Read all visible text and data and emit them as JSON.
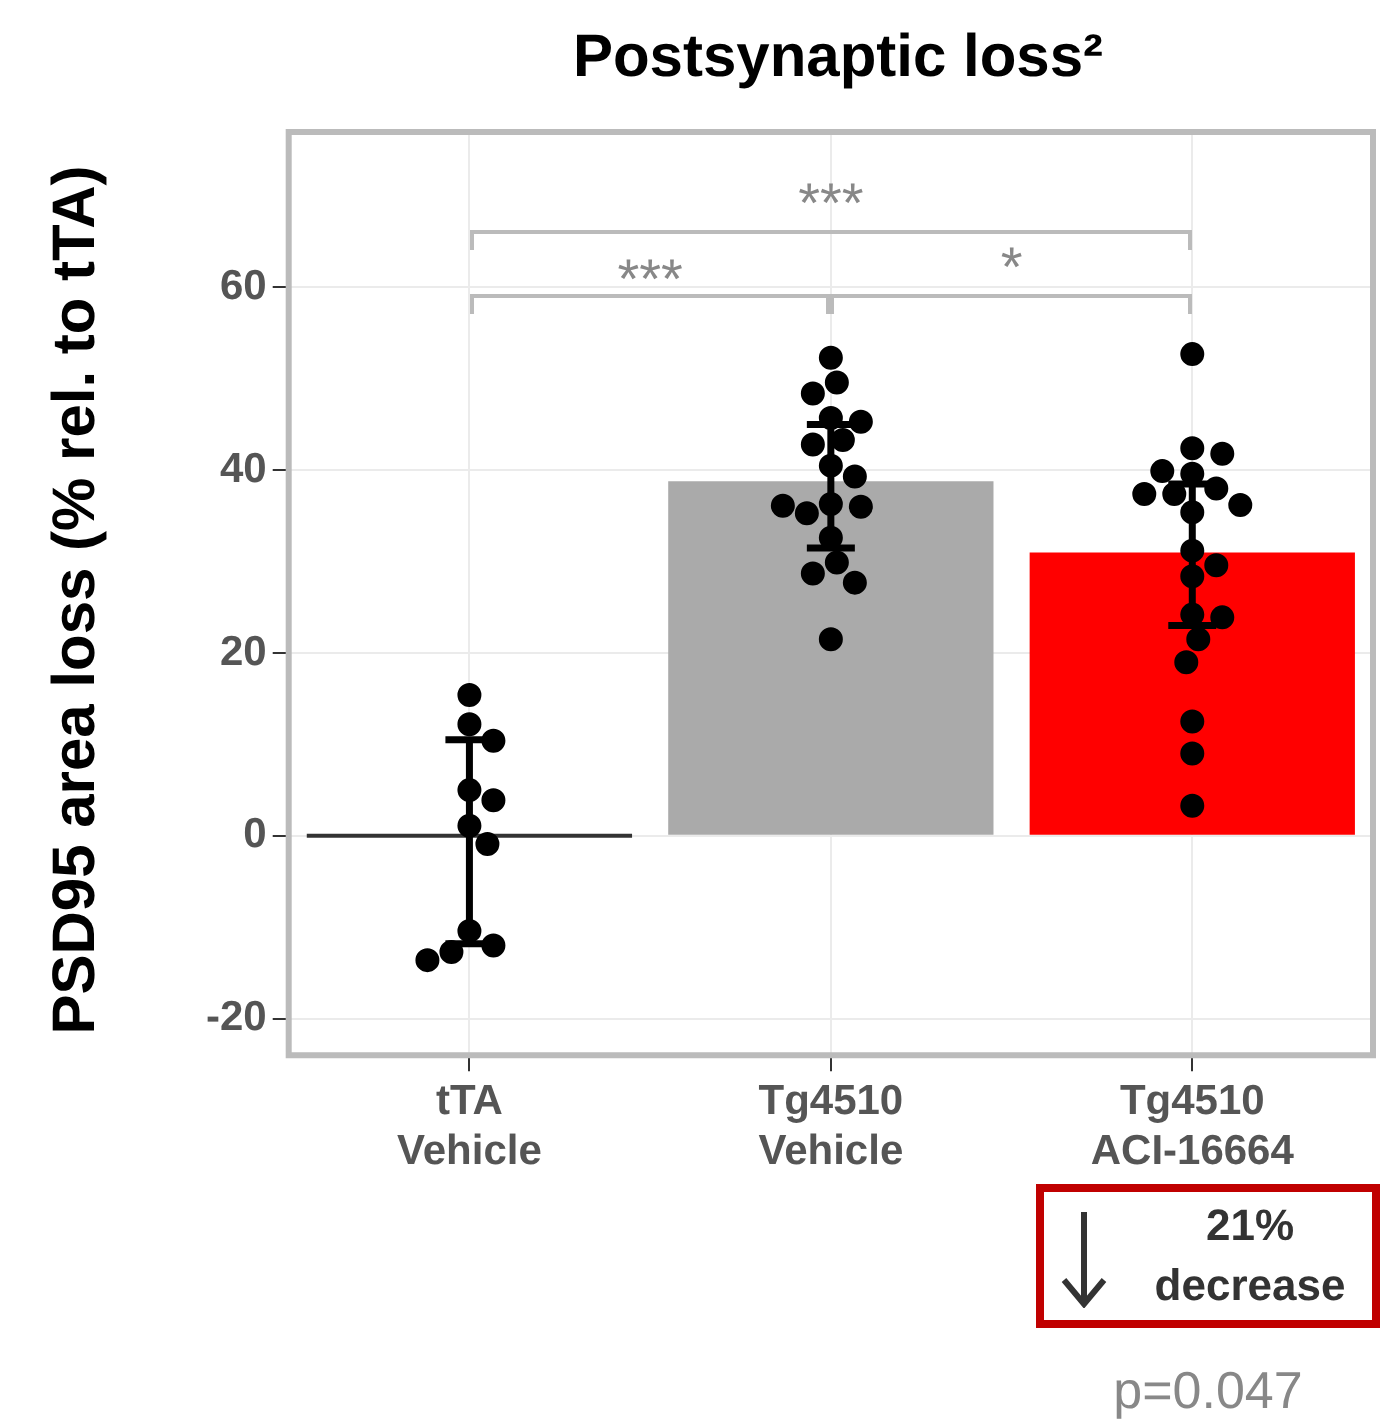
{
  "chart_data": {
    "type": "bar",
    "title": "Postsynaptic loss²",
    "ylabel": "PSD95 area loss (% rel. to tTA)",
    "categories": [
      "tTA\nVehicle",
      "Tg4510\nVehicle",
      "Tg4510\nACI-16664"
    ],
    "values": [
      0,
      38.8,
      31
    ],
    "colors": [
      "#333333",
      "#aaaaaa",
      "#ff0000"
    ],
    "errors": [
      [
        -11.8,
        10.5
      ],
      [
        31.5,
        45
      ],
      [
        23,
        38.5
      ]
    ],
    "series": [
      {
        "type": "scatter",
        "color": "#000000",
        "x": [
          "tTA\nVehicle",
          "tTA\nVehicle",
          "tTA\nVehicle",
          "tTA\nVehicle",
          "tTA\nVehicle",
          "tTA\nVehicle",
          "tTA\nVehicle",
          "tTA\nVehicle",
          "tTA\nVehicle",
          "tTA\nVehicle",
          "tTA\nVehicle"
        ],
        "values": [
          15.4,
          12.2,
          10.4,
          5.0,
          3.9,
          1.1,
          -0.9,
          -10.4,
          -12.0,
          -12.7,
          -13.6
        ]
      },
      {
        "type": "scatter",
        "color": "#000000",
        "x": [
          "Tg4510\nVehicle",
          "Tg4510\nVehicle",
          "Tg4510\nVehicle",
          "Tg4510\nVehicle",
          "Tg4510\nVehicle",
          "Tg4510\nVehicle",
          "Tg4510\nVehicle",
          "Tg4510\nVehicle",
          "Tg4510\nVehicle",
          "Tg4510\nVehicle",
          "Tg4510\nVehicle",
          "Tg4510\nVehicle",
          "Tg4510\nVehicle",
          "Tg4510\nVehicle",
          "Tg4510\nVehicle",
          "Tg4510\nVehicle",
          "Tg4510\nVehicle",
          "Tg4510\nVehicle"
        ],
        "values": [
          52.3,
          49.6,
          48.4,
          45.7,
          45.3,
          43.3,
          42.8,
          40.5,
          39.3,
          36.3,
          36.0,
          35.3,
          36.1,
          32.6,
          29.9,
          28.7,
          27.7,
          21.5
        ]
      },
      {
        "type": "scatter",
        "color": "#000000",
        "x": [
          "Tg4510\nACI-16664",
          "Tg4510\nACI-16664",
          "Tg4510\nACI-16664",
          "Tg4510\nACI-16664",
          "Tg4510\nACI-16664",
          "Tg4510\nACI-16664",
          "Tg4510\nACI-16664",
          "Tg4510\nACI-16664",
          "Tg4510\nACI-16664",
          "Tg4510\nACI-16664",
          "Tg4510\nACI-16664",
          "Tg4510\nACI-16664",
          "Tg4510\nACI-16664",
          "Tg4510\nACI-16664",
          "Tg4510\nACI-16664",
          "Tg4510\nACI-16664",
          "Tg4510\nACI-16664",
          "Tg4510\nACI-16664",
          "Tg4510\nACI-16664",
          "Tg4510\nACI-16664"
        ],
        "values": [
          52.7,
          42.4,
          41.8,
          39.6,
          39.9,
          38.0,
          37.4,
          37.4,
          36.2,
          35.4,
          31.2,
          29.6,
          28.4,
          24.2,
          23.9,
          21.5,
          19.0,
          12.5,
          9.0,
          3.3
        ]
      }
    ],
    "ylim": [
      -24,
      77
    ],
    "yticks": [
      -20,
      0,
      20,
      40,
      60
    ],
    "grid": true,
    "legend": false,
    "marker": "circle",
    "annotations": [
      "***",
      "***",
      "*",
      "21%\ndecrease",
      "p=0.047"
    ]
  }
}
